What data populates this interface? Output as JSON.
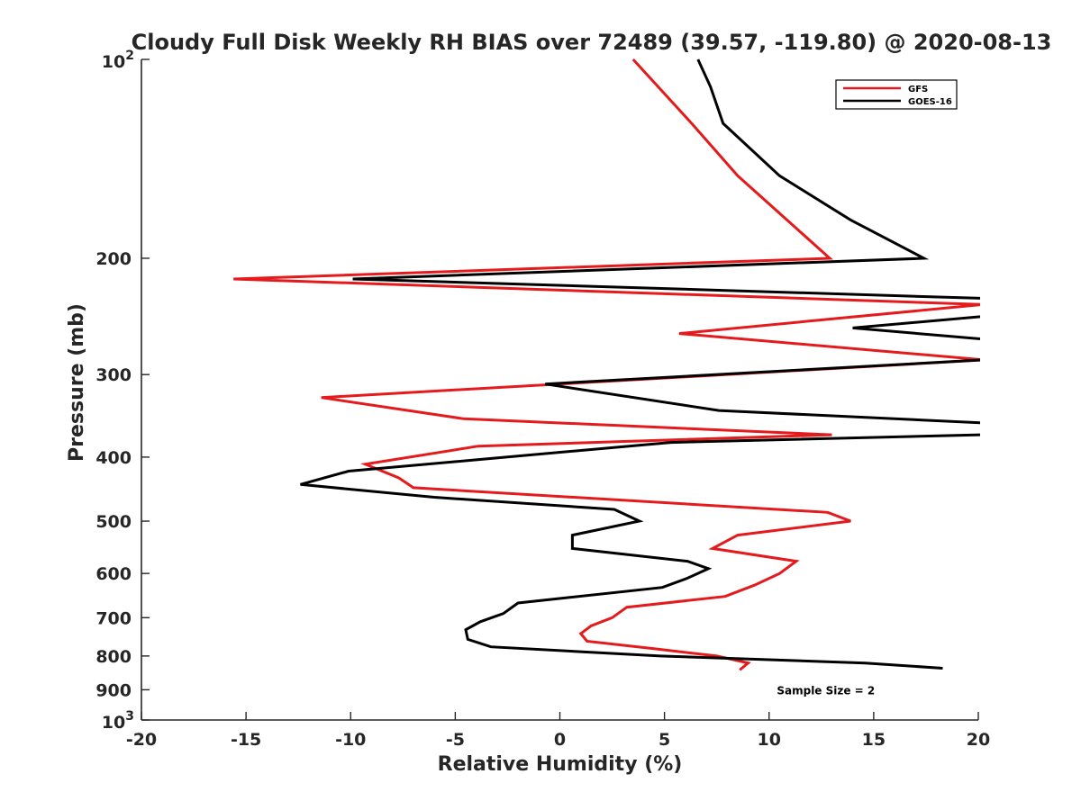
{
  "chart_data": {
    "type": "line",
    "title": "Cloudy Full Disk Weekly RH BIAS over 72489 (39.57, -119.80) @ 2020-08-13",
    "xlabel": "Relative Humidity (%)",
    "ylabel": "Pressure (mb)",
    "xlim": [
      -20,
      20
    ],
    "ylim": [
      100,
      1000
    ],
    "yscale": "log",
    "yreversed": true,
    "grid": false,
    "legend_position": "top-right",
    "x_ticks": [
      {
        "value": -20,
        "label": "-20"
      },
      {
        "value": -15,
        "label": "-15"
      },
      {
        "value": -10,
        "label": "-10"
      },
      {
        "value": -5,
        "label": "-5"
      },
      {
        "value": 0,
        "label": "0"
      },
      {
        "value": 5,
        "label": "5"
      },
      {
        "value": 10,
        "label": "10"
      },
      {
        "value": 15,
        "label": "15"
      },
      {
        "value": 20,
        "label": "20"
      }
    ],
    "y_ticks": [
      {
        "value": 100,
        "base": "10",
        "exp": "2"
      },
      {
        "value": 200,
        "label": "200"
      },
      {
        "value": 300,
        "label": "300"
      },
      {
        "value": 400,
        "label": "400"
      },
      {
        "value": 500,
        "label": "500"
      },
      {
        "value": 600,
        "label": "600"
      },
      {
        "value": 700,
        "label": "700"
      },
      {
        "value": 800,
        "label": "800"
      },
      {
        "value": 900,
        "label": "900"
      },
      {
        "value": 1000,
        "base": "10",
        "exp": "3"
      }
    ],
    "series": [
      {
        "name": "GFS",
        "color": "#e41a1c",
        "points": [
          [
            3.5,
            100
          ],
          [
            6.3,
            125
          ],
          [
            8.5,
            150
          ],
          [
            12.9,
            200
          ],
          [
            -15.6,
            215
          ],
          [
            20.2,
            235
          ],
          [
            5.7,
            260
          ],
          [
            20.3,
            285
          ],
          [
            -11.4,
            325
          ],
          [
            -4.6,
            350
          ],
          [
            13.0,
            370
          ],
          [
            -3.9,
            385
          ],
          [
            -9.3,
            410
          ],
          [
            -7.7,
            430
          ],
          [
            -7.0,
            445
          ],
          [
            12.8,
            485
          ],
          [
            13.9,
            500
          ],
          [
            8.5,
            525
          ],
          [
            7.3,
            550
          ],
          [
            11.3,
            575
          ],
          [
            10.5,
            600
          ],
          [
            9.3,
            625
          ],
          [
            7.9,
            650
          ],
          [
            3.2,
            675
          ],
          [
            2.5,
            700
          ],
          [
            1.5,
            720
          ],
          [
            1.0,
            740
          ],
          [
            1.3,
            760
          ],
          [
            4.5,
            780
          ],
          [
            7.5,
            800
          ],
          [
            9.0,
            820
          ],
          [
            8.6,
            840
          ]
        ]
      },
      {
        "name": "GOES-16",
        "color": "#000000",
        "points": [
          [
            6.6,
            100
          ],
          [
            7.2,
            110
          ],
          [
            7.8,
            125
          ],
          [
            10.5,
            150
          ],
          [
            13.9,
            175
          ],
          [
            17.4,
            200
          ],
          [
            -9.9,
            215
          ],
          [
            20.2,
            230
          ],
          [
            20.2,
            245
          ],
          [
            14.0,
            255
          ],
          [
            20.2,
            265
          ],
          [
            20.2,
            285
          ],
          [
            -0.7,
            310
          ],
          [
            7.6,
            340
          ],
          [
            20.2,
            355
          ],
          [
            20.2,
            370
          ],
          [
            5.3,
            380
          ],
          [
            -10.1,
            420
          ],
          [
            -12.4,
            440
          ],
          [
            -6.0,
            460
          ],
          [
            2.6,
            480
          ],
          [
            3.8,
            500
          ],
          [
            0.6,
            525
          ],
          [
            0.6,
            550
          ],
          [
            6.1,
            575
          ],
          [
            7.1,
            590
          ],
          [
            6.1,
            610
          ],
          [
            4.9,
            630
          ],
          [
            -2.0,
            665
          ],
          [
            -2.7,
            690
          ],
          [
            -3.8,
            710
          ],
          [
            -4.5,
            730
          ],
          [
            -4.4,
            755
          ],
          [
            -3.3,
            775
          ],
          [
            4.8,
            800
          ],
          [
            14.6,
            820
          ],
          [
            18.3,
            835
          ]
        ]
      }
    ],
    "annotations": [
      {
        "text": "Sample Size = 2",
        "x": 12.5,
        "y": 900
      }
    ]
  }
}
